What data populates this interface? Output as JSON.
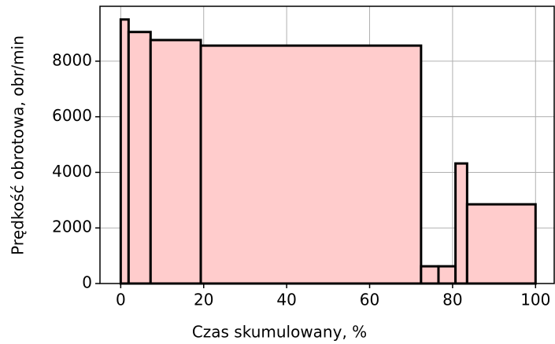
{
  "chart_data": {
    "type": "histogram",
    "xlabel": "Czas skumulowany, %",
    "ylabel": "Prędkość obrotowa, obr/min",
    "bins": [
      0,
      1.9,
      7.2,
      19.3,
      72.4,
      76.6,
      80.7,
      83.5,
      100
    ],
    "values": [
      9500,
      9050,
      8760,
      8560,
      620,
      620,
      4320,
      2850
    ],
    "color": "#ffcccc",
    "edgecolor": "#000000",
    "xlim": [
      -5,
      104.5
    ],
    "xticks": [
      0,
      20,
      40,
      60,
      80,
      100
    ],
    "ylim": [
      0,
      9975
    ],
    "yticks": [
      0,
      2000,
      4000,
      6000,
      8000
    ],
    "grid": true
  }
}
